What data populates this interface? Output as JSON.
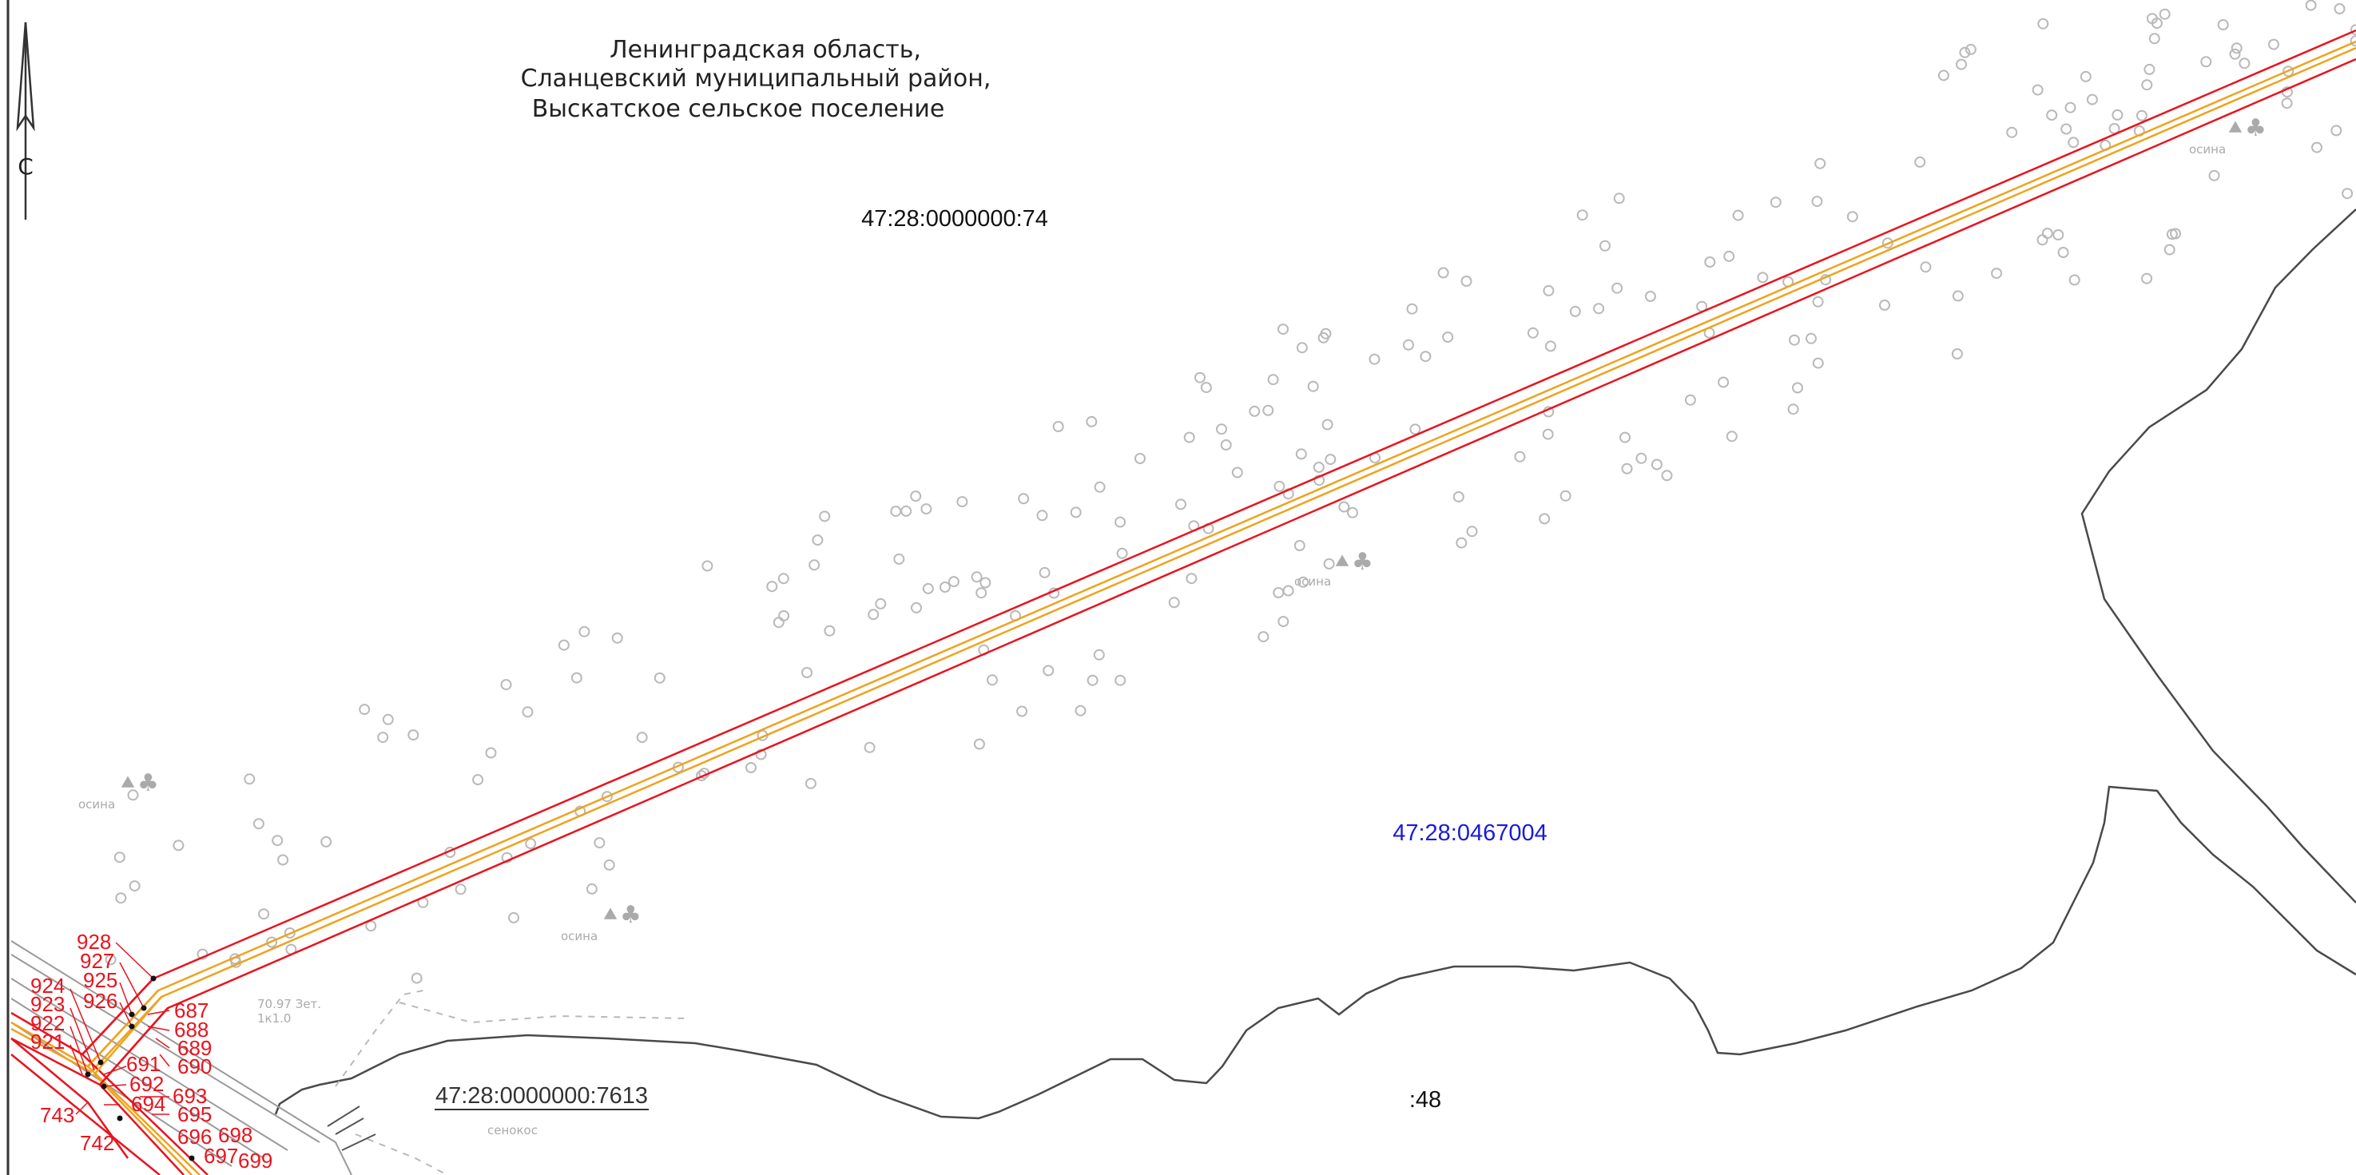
{
  "header": {
    "region_lines": [
      "Ленинградская область,",
      "Сланцевский муниципальный район,",
      "Выскатское сельское поселение"
    ]
  },
  "north_arrow": {
    "label": "С",
    "icon": "north-arrow-icon"
  },
  "parcels": {
    "cadastral_top": "47:28:0000000:74",
    "quarter": "47:28:0467004",
    "road_parcel": "47:28:0000000:7613",
    "short_48": ":48"
  },
  "vegetation": {
    "label": "осина",
    "icon": "tree-icon"
  },
  "field_label": "сенокос",
  "dimension_label": {
    "line1": "70.97 Зет.",
    "line2": "1к1.0"
  },
  "points": {
    "p928": "928",
    "p927": "927",
    "p925": "925",
    "p926": "926",
    "p924": "924",
    "p923": "923",
    "p922": "922",
    "p921": "921",
    "p687": "687",
    "p688": "688",
    "p689": "689",
    "p690": "690",
    "p691": "691",
    "p692": "692",
    "p693": "693",
    "p694": "694",
    "p695": "695",
    "p696": "696",
    "p697": "697",
    "p698": "698",
    "p699": "699",
    "p742": "742",
    "p743": "743"
  },
  "colors": {
    "boundary_red": "#e8141e",
    "axis_orange": "#f0a21e",
    "contour_gray": "#4a4a4a",
    "light_gray": "#b9b9b9",
    "quarter_blue": "#1a1adc",
    "text_black": "#111111"
  }
}
